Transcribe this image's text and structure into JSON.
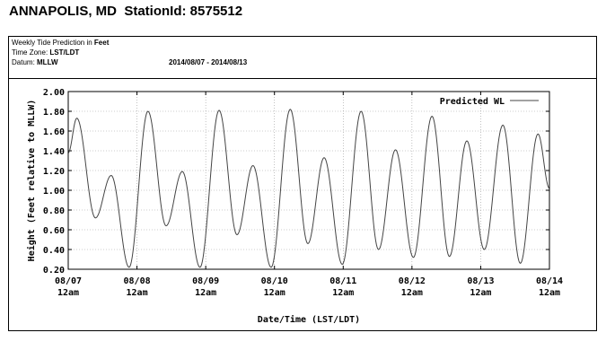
{
  "header": {
    "station": "ANNAPOLIS, MD",
    "station_id_label": "StationId:",
    "station_id": "8575512"
  },
  "info": {
    "prediction_prefix": "Weekly Tide Prediction in ",
    "prediction_unit": "Feet",
    "timezone_label": "Time Zone: ",
    "timezone": "LST/LDT",
    "datum_label": "Datum: ",
    "datum": "MLLW",
    "date_range": "2014/08/07 - 2014/08/13"
  },
  "chart_data": {
    "type": "line",
    "title": "",
    "xlabel": "Date/Time (LST/LDT)",
    "ylabel": "Height (Feet relative to MLLW)",
    "ylim": [
      0.2,
      2.0
    ],
    "yticks": [
      "0.20",
      "0.40",
      "0.60",
      "0.80",
      "1.00",
      "1.20",
      "1.40",
      "1.60",
      "1.80",
      "2.00"
    ],
    "xlim": [
      "2014-08-07 00:00",
      "2014-08-14 00:00"
    ],
    "xticks": [
      {
        "date": "08/07",
        "time": "12am"
      },
      {
        "date": "08/08",
        "time": "12am"
      },
      {
        "date": "08/09",
        "time": "12am"
      },
      {
        "date": "08/10",
        "time": "12am"
      },
      {
        "date": "08/11",
        "time": "12am"
      },
      {
        "date": "08/12",
        "time": "12am"
      },
      {
        "date": "08/13",
        "time": "12am"
      },
      {
        "date": "08/14",
        "time": "12am"
      }
    ],
    "grid": true,
    "legend": "top-right",
    "series": [
      {
        "name": "Predicted WL",
        "color": "#444444",
        "points": [
          {
            "x": "2014-08-07 00:00",
            "y": 1.38
          },
          {
            "x": "2014-08-07 03:00",
            "y": 1.73
          },
          {
            "x": "2014-08-07 09:30",
            "y": 0.72
          },
          {
            "x": "2014-08-07 15:00",
            "y": 1.15
          },
          {
            "x": "2014-08-07 21:15",
            "y": 0.22
          },
          {
            "x": "2014-08-08 03:50",
            "y": 1.8
          },
          {
            "x": "2014-08-08 10:10",
            "y": 0.64
          },
          {
            "x": "2014-08-08 15:50",
            "y": 1.19
          },
          {
            "x": "2014-08-08 22:00",
            "y": 0.22
          },
          {
            "x": "2014-08-09 04:40",
            "y": 1.81
          },
          {
            "x": "2014-08-09 10:55",
            "y": 0.55
          },
          {
            "x": "2014-08-09 16:30",
            "y": 1.25
          },
          {
            "x": "2014-08-09 22:50",
            "y": 0.22
          },
          {
            "x": "2014-08-10 05:30",
            "y": 1.82
          },
          {
            "x": "2014-08-10 11:40",
            "y": 0.46
          },
          {
            "x": "2014-08-10 17:20",
            "y": 1.33
          },
          {
            "x": "2014-08-10 23:40",
            "y": 0.25
          },
          {
            "x": "2014-08-11 06:15",
            "y": 1.8
          },
          {
            "x": "2014-08-11 12:20",
            "y": 0.4
          },
          {
            "x": "2014-08-11 18:15",
            "y": 1.41
          },
          {
            "x": "2014-08-12 00:30",
            "y": 0.32
          },
          {
            "x": "2014-08-12 07:00",
            "y": 1.75
          },
          {
            "x": "2014-08-12 13:05",
            "y": 0.33
          },
          {
            "x": "2014-08-12 19:10",
            "y": 1.5
          },
          {
            "x": "2014-08-13 01:15",
            "y": 0.4
          },
          {
            "x": "2014-08-13 07:45",
            "y": 1.66
          },
          {
            "x": "2014-08-13 13:50",
            "y": 0.26
          },
          {
            "x": "2014-08-13 20:00",
            "y": 1.57
          },
          {
            "x": "2014-08-14 00:00",
            "y": 1.02
          }
        ]
      }
    ]
  }
}
